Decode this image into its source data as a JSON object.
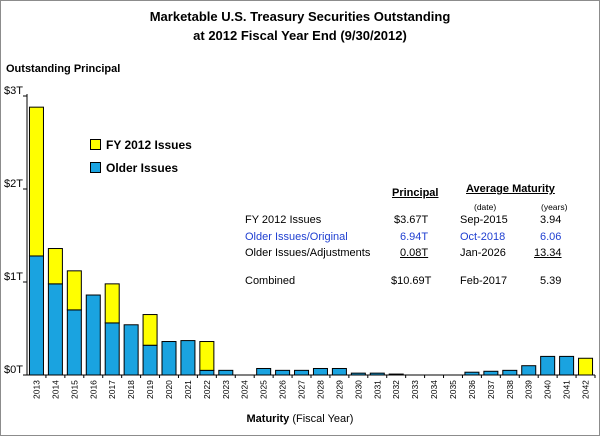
{
  "chart_data": {
    "type": "bar",
    "stacked": true,
    "title": "Marketable U.S. Treasury Securities Outstanding",
    "subtitle": "at 2012 Fiscal Year End (9/30/2012)",
    "ylabel": "Outstanding Principal",
    "xlabel_bold": "Maturity",
    "xlabel_rest": " (Fiscal Year)",
    "ylim": [
      0,
      3
    ],
    "y_ticks": [
      0,
      1,
      2,
      3
    ],
    "y_tick_labels": [
      "$0T",
      "$1T",
      "$2T",
      "$3T"
    ],
    "grid": false,
    "categories": [
      "2013",
      "2014",
      "2015",
      "2016",
      "2017",
      "2018",
      "2019",
      "2020",
      "2021",
      "2022",
      "2023",
      "2024",
      "2025",
      "2026",
      "2027",
      "2028",
      "2029",
      "2030",
      "2031",
      "2032",
      "2033",
      "2034",
      "2035",
      "2036",
      "2037",
      "2038",
      "2039",
      "2040",
      "2041",
      "2042"
    ],
    "series": [
      {
        "name": "Older Issues",
        "color": "#1aa3e0",
        "values": [
          1.28,
          0.98,
          0.7,
          0.86,
          0.56,
          0.54,
          0.32,
          0.36,
          0.37,
          0.05,
          0.05,
          0.0,
          0.07,
          0.05,
          0.05,
          0.07,
          0.07,
          0.02,
          0.02,
          0.01,
          0.0,
          0.0,
          0.0,
          0.03,
          0.04,
          0.05,
          0.1,
          0.2,
          0.2,
          0.0
        ]
      },
      {
        "name": "FY 2012 Issues",
        "color": "#ffff00",
        "values": [
          1.6,
          0.38,
          0.42,
          0.0,
          0.42,
          0.0,
          0.33,
          0.0,
          0.0,
          0.31,
          0.0,
          0.0,
          0.0,
          0.0,
          0.0,
          0.0,
          0.0,
          0.0,
          0.0,
          0.0,
          0.0,
          0.0,
          0.0,
          0.0,
          0.0,
          0.0,
          0.0,
          0.0,
          0.0,
          0.18
        ]
      }
    ],
    "legend_position": "left",
    "table": {
      "header_principal": "Principal",
      "header_avg": "Average Maturity",
      "sub_date": "(date)",
      "sub_years": "(years)",
      "rows": [
        {
          "label": "FY 2012 Issues",
          "principal": "$3.67T",
          "date": "Sep-2015",
          "years": "3.94",
          "color": "#000000"
        },
        {
          "label": "Older Issues/Original",
          "principal": "6.94T",
          "date": "Oct-2018",
          "years": "6.06",
          "color": "#1f3fd1"
        },
        {
          "label": "Older Issues/Adjustments",
          "principal": "0.08T",
          "date": "Jan-2026",
          "years": "13.34",
          "color": "#000000"
        },
        {
          "label": "Combined",
          "principal": "$10.69T",
          "date": "Feb-2017",
          "years": "5.39",
          "color": "#000000"
        }
      ]
    }
  }
}
